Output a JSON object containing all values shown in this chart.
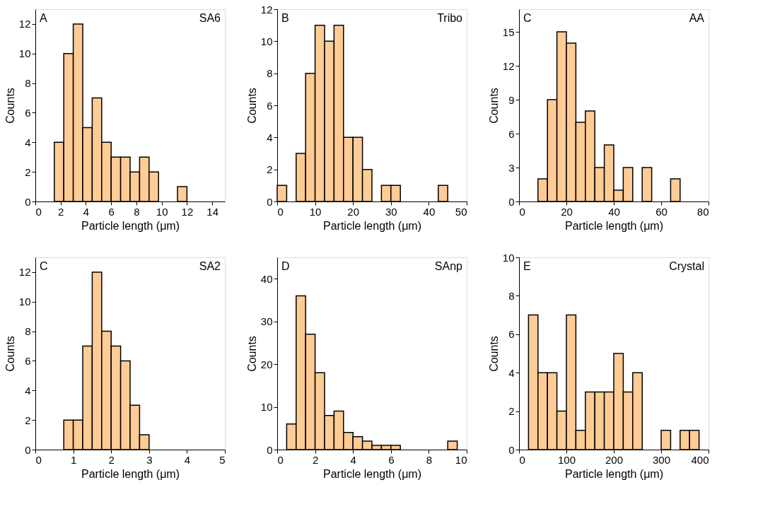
{
  "chart_data": [
    {
      "type": "histogram",
      "annotations": [
        "A",
        "SA6"
      ],
      "xlabel": "Particle length (μm)",
      "ylabel": "Counts",
      "color": "#ffcc96",
      "bins": [
        1.5,
        2.25,
        3,
        3.75,
        4.5,
        5.25,
        6,
        6.75,
        7.5,
        8.25,
        9,
        9.75,
        10.5,
        11.25,
        12
      ],
      "values": [
        4,
        10,
        12,
        5,
        7,
        4,
        3,
        3,
        2,
        3,
        2,
        0,
        0,
        1
      ],
      "xlim": [
        0,
        15
      ],
      "xticks": [
        0,
        2,
        4,
        6,
        8,
        10,
        12,
        14
      ],
      "ylim": [
        0,
        13
      ],
      "yticks": [
        0,
        2,
        4,
        6,
        8,
        10,
        12
      ],
      "grid": false
    },
    {
      "type": "histogram",
      "annotations": [
        "B",
        "Tribo"
      ],
      "xlabel": "Particle length (μm)",
      "ylabel": "Counts",
      "color": "#ffcc96",
      "bins": [
        0,
        2.5,
        5,
        7.5,
        10,
        12.5,
        15,
        17.5,
        20,
        22.5,
        25,
        27.5,
        30,
        32.5,
        35,
        37.5,
        40,
        42.5,
        45
      ],
      "values": [
        1,
        0,
        3,
        8,
        11,
        10,
        11,
        4,
        4,
        2,
        0,
        1,
        1,
        0,
        0,
        0,
        0,
        1
      ],
      "xlim": [
        0,
        50
      ],
      "xticks": [
        0,
        10,
        20,
        30,
        40,
        50
      ],
      "ylim": [
        0,
        12
      ],
      "yticks": [
        0,
        2,
        4,
        6,
        8,
        10,
        12
      ],
      "grid": false
    },
    {
      "type": "histogram",
      "annotations": [
        "C",
        "AA"
      ],
      "xlabel": "Particle length (μm)",
      "ylabel": "Counts",
      "color": "#ffcc96",
      "bins": [
        8,
        12,
        16,
        20,
        24,
        28,
        32,
        36,
        40,
        44,
        48,
        52,
        56,
        60,
        64,
        68
      ],
      "values": [
        2,
        9,
        15,
        14,
        7,
        8,
        3,
        5,
        1,
        3,
        0,
        3,
        0,
        0,
        2
      ],
      "xlim": [
        0,
        80
      ],
      "xticks": [
        0,
        20,
        40,
        60,
        80
      ],
      "ylim": [
        0,
        17
      ],
      "yticks": [
        0,
        3,
        6,
        9,
        12,
        15
      ],
      "grid": false
    },
    {
      "type": "histogram",
      "annotations": [
        "C",
        "SA2"
      ],
      "xlabel": "Particle length (μm)",
      "ylabel": "Counts",
      "color": "#ffcc96",
      "bins": [
        0.75,
        1,
        1.25,
        1.5,
        1.75,
        2,
        2.25,
        2.5,
        2.75,
        3
      ],
      "values": [
        2,
        2,
        7,
        12,
        8,
        7,
        6,
        3,
        1
      ],
      "xlim": [
        0,
        5
      ],
      "xticks": [
        0,
        1,
        2,
        3,
        4,
        5
      ],
      "ylim": [
        0,
        13
      ],
      "yticks": [
        0,
        2,
        4,
        6,
        8,
        10,
        12
      ],
      "grid": false
    },
    {
      "type": "histogram",
      "annotations": [
        "D",
        "SAnp"
      ],
      "xlabel": "Particle length (μm)",
      "ylabel": "Counts",
      "color": "#ffcc96",
      "bins": [
        0.5,
        1,
        1.5,
        2,
        2.5,
        3,
        3.5,
        4,
        4.5,
        5,
        5.5,
        6,
        6.5,
        7,
        7.5,
        8,
        8.5,
        9,
        9.5
      ],
      "values": [
        6,
        36,
        27,
        18,
        8,
        9,
        4,
        3,
        2,
        1,
        1,
        1,
        0,
        0,
        0,
        0,
        0,
        2
      ],
      "xlim": [
        0,
        10
      ],
      "xticks": [
        0,
        2,
        4,
        6,
        8,
        10
      ],
      "ylim": [
        0,
        45
      ],
      "yticks": [
        0,
        10,
        20,
        30,
        40
      ],
      "grid": false
    },
    {
      "type": "histogram",
      "annotations": [
        "E",
        "Crystal"
      ],
      "xlabel": "Particle length (μm)",
      "ylabel": "Counts",
      "color": "#ffcc96",
      "bins": [
        20,
        40,
        60,
        80,
        100,
        120,
        140,
        160,
        180,
        200,
        220,
        240,
        260,
        280,
        300,
        320,
        340,
        360,
        380
      ],
      "values": [
        7,
        4,
        4,
        2,
        7,
        1,
        3,
        3,
        3,
        5,
        3,
        4,
        0,
        0,
        1,
        0,
        1,
        1
      ],
      "xlim": [
        0,
        400
      ],
      "xticks": [
        0,
        100,
        200,
        300,
        400
      ],
      "ylim": [
        0,
        10
      ],
      "yticks": [
        0,
        2,
        4,
        6,
        8,
        10
      ],
      "grid": false
    }
  ]
}
